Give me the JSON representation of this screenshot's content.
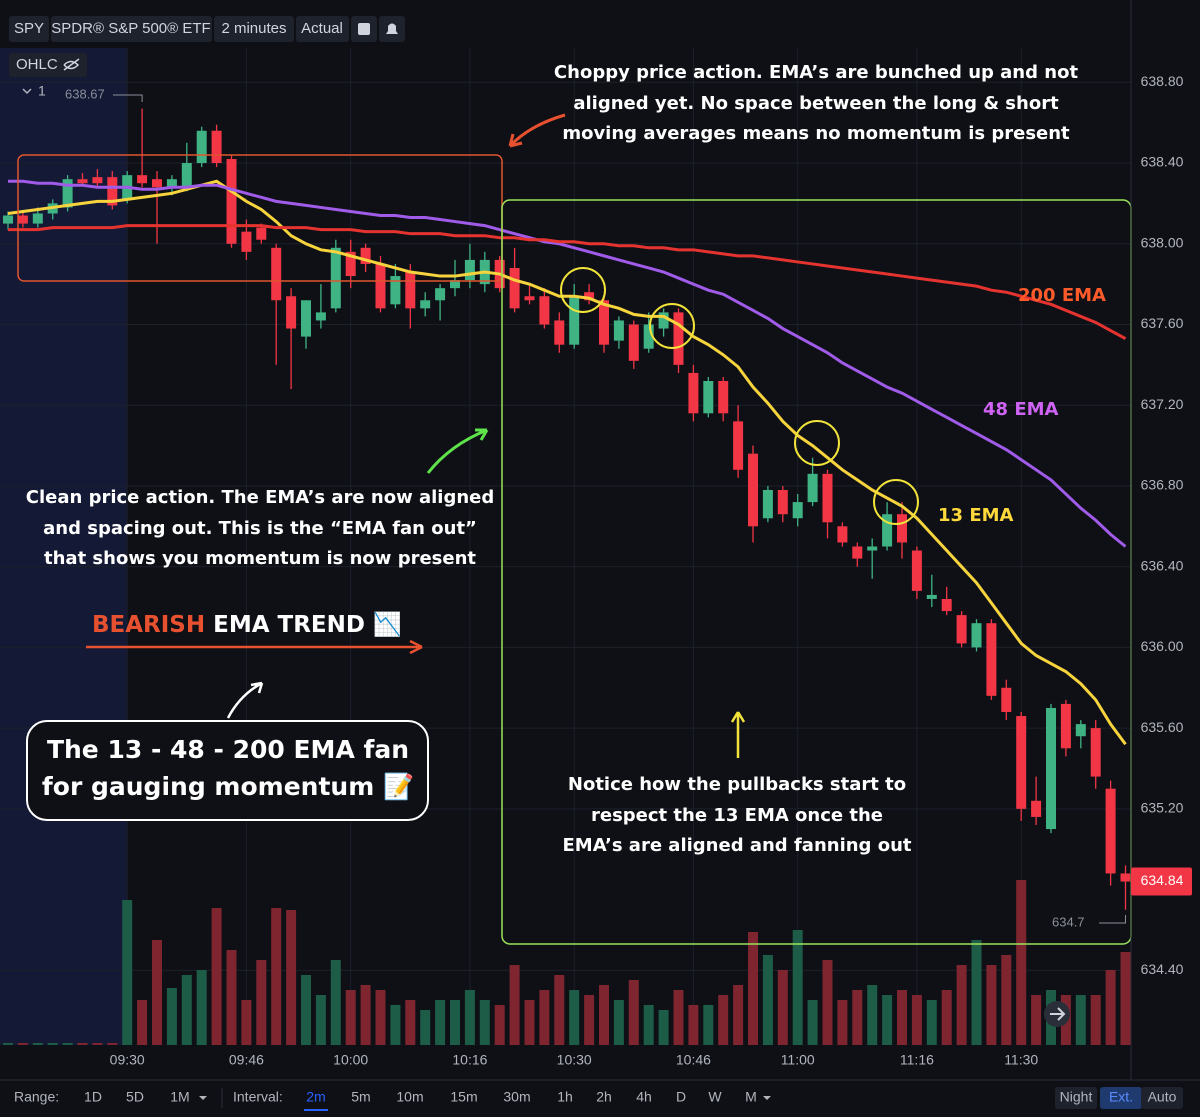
{
  "toolbar": {
    "symbol": "SPY",
    "name": "SPDR® S&P 500® ETF",
    "interval": "2 minutes",
    "mode": "Actual",
    "legend_label": "OHLC",
    "study_count": 1
  },
  "chart_data": {
    "type": "candlestick",
    "categories": [
      null,
      null,
      null,
      null,
      null,
      null,
      null,
      null,
      "09:30",
      null,
      null,
      null,
      null,
      null,
      null,
      null,
      "09:46",
      null,
      null,
      null,
      null,
      null,
      null,
      "10:00",
      null,
      null,
      null,
      null,
      null,
      null,
      null,
      "10:16",
      null,
      null,
      null,
      null,
      null,
      null,
      "10:30",
      null,
      null,
      null,
      null,
      null,
      null,
      null,
      "10:46",
      null,
      null,
      null,
      null,
      null,
      null,
      "11:00",
      null,
      null,
      null,
      null,
      null,
      null,
      null,
      "11:16",
      null,
      null,
      null,
      null,
      null,
      null,
      "11:30",
      null,
      null,
      null,
      null,
      null,
      null,
      null
    ],
    "open": [
      638.1,
      638.14,
      638.1,
      638.15,
      638.18,
      638.32,
      638.33,
      638.33,
      638.22,
      638.34,
      638.32,
      638.28,
      638.28,
      638.4,
      638.56,
      638.42,
      638.06,
      638.08,
      637.98,
      637.74,
      637.54,
      637.62,
      637.68,
      637.96,
      637.98,
      637.9,
      637.7,
      637.86,
      637.68,
      637.72,
      637.78,
      637.82,
      637.8,
      637.92,
      637.88,
      637.74,
      637.74,
      637.62,
      637.5,
      637.76,
      637.72,
      637.52,
      637.6,
      637.48,
      637.58,
      637.66,
      637.36,
      637.16,
      637.32,
      637.12,
      636.96,
      636.64,
      636.78,
      636.64,
      636.72,
      636.86,
      636.6,
      636.5,
      636.48,
      636.5,
      636.66,
      636.48,
      636.24,
      636.24,
      636.16,
      636.0,
      636.12,
      635.8,
      635.66,
      635.24,
      635.1,
      635.72,
      635.56,
      635.6,
      635.3,
      634.88
    ],
    "high": [
      638.16,
      638.16,
      638.18,
      638.22,
      638.34,
      638.35,
      638.37,
      638.36,
      638.36,
      638.67,
      638.36,
      638.34,
      638.5,
      638.58,
      638.59,
      638.44,
      638.12,
      638.1,
      638.0,
      637.78,
      637.72,
      637.8,
      638.02,
      638.02,
      638.0,
      637.94,
      637.9,
      637.9,
      637.76,
      637.8,
      637.92,
      638.0,
      637.96,
      637.94,
      637.98,
      637.8,
      637.78,
      637.66,
      637.8,
      637.8,
      637.74,
      637.64,
      637.62,
      637.66,
      637.68,
      637.68,
      637.4,
      637.34,
      637.34,
      637.2,
      637.0,
      636.8,
      636.8,
      636.76,
      636.94,
      636.88,
      636.62,
      636.52,
      636.54,
      636.72,
      636.72,
      636.5,
      636.36,
      636.3,
      636.18,
      636.14,
      636.14,
      635.84,
      635.68,
      635.36,
      635.72,
      635.74,
      635.64,
      635.64,
      635.34,
      634.92
    ],
    "low": [
      638.07,
      638.08,
      638.08,
      638.12,
      638.16,
      638.29,
      638.28,
      638.17,
      638.2,
      638.28,
      638.0,
      638.24,
      638.26,
      638.38,
      638.38,
      637.98,
      637.92,
      638.0,
      637.4,
      637.28,
      637.48,
      637.58,
      637.66,
      637.78,
      637.86,
      637.66,
      637.68,
      637.58,
      637.64,
      637.62,
      637.74,
      637.78,
      637.76,
      637.76,
      637.66,
      637.7,
      637.58,
      637.46,
      637.48,
      637.7,
      637.46,
      637.48,
      637.38,
      637.46,
      637.54,
      637.36,
      637.12,
      637.14,
      637.12,
      636.84,
      636.52,
      636.62,
      636.62,
      636.6,
      636.7,
      636.54,
      636.5,
      636.4,
      636.34,
      636.48,
      636.44,
      636.24,
      636.2,
      636.16,
      636.0,
      635.98,
      635.74,
      635.64,
      635.14,
      635.12,
      635.08,
      635.46,
      635.5,
      635.3,
      634.82,
      634.7
    ],
    "close": [
      638.14,
      638.1,
      638.15,
      638.2,
      638.32,
      638.3,
      638.3,
      638.19,
      638.34,
      638.3,
      638.28,
      638.32,
      638.4,
      638.56,
      638.4,
      638.0,
      637.96,
      638.02,
      637.72,
      637.58,
      637.72,
      637.66,
      637.98,
      637.84,
      637.9,
      637.68,
      637.84,
      637.68,
      637.72,
      637.78,
      637.82,
      637.92,
      637.92,
      637.78,
      637.68,
      637.72,
      637.6,
      637.5,
      637.74,
      637.72,
      637.5,
      637.62,
      637.42,
      637.6,
      637.66,
      637.4,
      637.16,
      637.32,
      637.16,
      636.88,
      636.6,
      636.78,
      636.66,
      636.72,
      636.86,
      636.62,
      636.52,
      636.44,
      636.5,
      636.66,
      636.52,
      636.28,
      636.26,
      636.18,
      636.02,
      636.12,
      635.76,
      635.68,
      635.2,
      635.16,
      635.7,
      635.5,
      635.62,
      635.36,
      634.88,
      634.84
    ],
    "volume": [
      2,
      2,
      2,
      2,
      2,
      2,
      2,
      2,
      145,
      45,
      105,
      57,
      70,
      75,
      137,
      95,
      45,
      85,
      137,
      135,
      70,
      50,
      85,
      55,
      60,
      55,
      40,
      45,
      35,
      45,
      45,
      55,
      45,
      40,
      80,
      45,
      55,
      70,
      55,
      50,
      60,
      45,
      65,
      40,
      35,
      55,
      40,
      40,
      50,
      60,
      113,
      90,
      75,
      115,
      45,
      85,
      45,
      55,
      60,
      50,
      55,
      50,
      45,
      55,
      80,
      105,
      80,
      90,
      165,
      50,
      55,
      50,
      50,
      50,
      75,
      93
    ],
    "up_color": "#3fb384",
    "down_color": "#f23645",
    "up_volume_color": "#1d5c47",
    "down_volume_color": "#7e2530",
    "series": [
      {
        "name": "13 EMA",
        "color": "#f7d43d",
        "values": [
          638.15,
          638.16,
          638.17,
          638.18,
          638.19,
          638.2,
          638.21,
          638.21,
          638.22,
          638.23,
          638.24,
          638.25,
          638.27,
          638.29,
          638.31,
          638.26,
          638.21,
          638.17,
          638.11,
          638.04,
          638.0,
          637.97,
          637.96,
          637.94,
          637.92,
          637.9,
          637.88,
          637.86,
          637.85,
          637.84,
          637.84,
          637.85,
          637.86,
          637.85,
          637.82,
          637.8,
          637.77,
          637.74,
          637.74,
          637.73,
          637.7,
          637.68,
          637.65,
          637.64,
          637.64,
          637.6,
          637.54,
          637.5,
          637.45,
          637.39,
          637.29,
          637.21,
          637.12,
          637.05,
          637.0,
          636.94,
          636.88,
          636.83,
          636.78,
          636.74,
          636.7,
          636.64,
          636.56,
          636.48,
          636.4,
          636.32,
          636.22,
          636.12,
          636.02,
          635.96,
          635.92,
          635.88,
          635.82,
          635.74,
          635.62,
          635.52
        ]
      },
      {
        "name": "48 EMA",
        "color": "#a05be8",
        "values": [
          638.31,
          638.31,
          638.3,
          638.3,
          638.29,
          638.29,
          638.28,
          638.28,
          638.28,
          638.27,
          638.27,
          638.28,
          638.28,
          638.29,
          638.29,
          638.27,
          638.25,
          638.23,
          638.21,
          638.2,
          638.19,
          638.18,
          638.17,
          638.16,
          638.15,
          638.14,
          638.14,
          638.13,
          638.13,
          638.12,
          638.11,
          638.1,
          638.09,
          638.07,
          638.05,
          638.03,
          638.01,
          638.0,
          637.98,
          637.96,
          637.94,
          637.92,
          637.9,
          637.88,
          637.86,
          637.83,
          637.8,
          637.77,
          637.75,
          637.71,
          637.67,
          637.63,
          637.58,
          637.54,
          637.5,
          637.46,
          637.41,
          637.37,
          637.33,
          637.29,
          637.26,
          637.22,
          637.18,
          637.14,
          637.1,
          637.06,
          637.02,
          636.98,
          636.93,
          636.88,
          636.83,
          636.76,
          636.69,
          636.63,
          636.56,
          636.5
        ]
      },
      {
        "name": "200 EMA",
        "color": "#e5332f",
        "values": [
          638.07,
          638.07,
          638.07,
          638.08,
          638.08,
          638.08,
          638.08,
          638.08,
          638.09,
          638.09,
          638.09,
          638.09,
          638.09,
          638.09,
          638.09,
          638.09,
          638.09,
          638.09,
          638.08,
          638.08,
          638.08,
          638.07,
          638.07,
          638.07,
          638.06,
          638.06,
          638.06,
          638.05,
          638.05,
          638.05,
          638.04,
          638.04,
          638.04,
          638.03,
          638.03,
          638.02,
          638.02,
          638.01,
          638.01,
          638.0,
          638.0,
          637.99,
          637.99,
          637.98,
          637.98,
          637.97,
          637.97,
          637.96,
          637.95,
          637.94,
          637.94,
          637.93,
          637.92,
          637.91,
          637.9,
          637.89,
          637.88,
          637.87,
          637.86,
          637.85,
          637.84,
          637.83,
          637.82,
          637.81,
          637.8,
          637.79,
          637.77,
          637.76,
          637.74,
          637.72,
          637.7,
          637.67,
          637.64,
          637.61,
          637.57,
          637.53
        ]
      }
    ],
    "ylim": [
      634.03,
      638.97
    ],
    "yticks": [
      {
        "value": 638.8,
        "label": "638.80"
      },
      {
        "value": 638.4,
        "label": "638.40"
      },
      {
        "value": 638,
        "label": "638.00"
      },
      {
        "value": 637.6,
        "label": "637.60"
      },
      {
        "value": 637.2,
        "label": "637.20"
      },
      {
        "value": 636.8,
        "label": "636.80"
      },
      {
        "value": 636.4,
        "label": "636.40"
      },
      {
        "value": 636,
        "label": "636.00"
      },
      {
        "value": 635.6,
        "label": "635.60"
      },
      {
        "value": 635.2,
        "label": "635.20"
      },
      {
        "value": 634.4,
        "label": "634.40"
      }
    ],
    "grid": true,
    "annotations": {
      "choppy": [
        "Choppy price action. EMA’s are bunched up and not",
        "aligned yet. No space between the long & short",
        "moving averages means no momentum is present"
      ],
      "clean": [
        "Clean price action. The EMA’s are now aligned",
        "and spacing out. This is the “EMA fan out”",
        "that shows you momentum is now present"
      ],
      "trend_word": "BEARISH",
      "trend_rest": "EMA TREND",
      "trend_icon": "📉",
      "fan_box": [
        "The 13 - 48 - 200 EMA fan",
        "for gauging momentum 📝"
      ],
      "notice": [
        "Notice how the pullbacks start to",
        "respect the 13 EMA once the",
        "EMA’s are aligned and fanning out"
      ]
    }
  },
  "footer": {
    "range_label": "Range:",
    "ranges": [
      "1D",
      "5D",
      "1M"
    ],
    "interval_label": "Interval:",
    "intervals": [
      "2m",
      "5m",
      "10m",
      "15m",
      "30m",
      "1h",
      "2h",
      "4h",
      "D",
      "W",
      "M"
    ],
    "toggles": [
      "Night",
      "Ext.",
      "Auto"
    ]
  }
}
